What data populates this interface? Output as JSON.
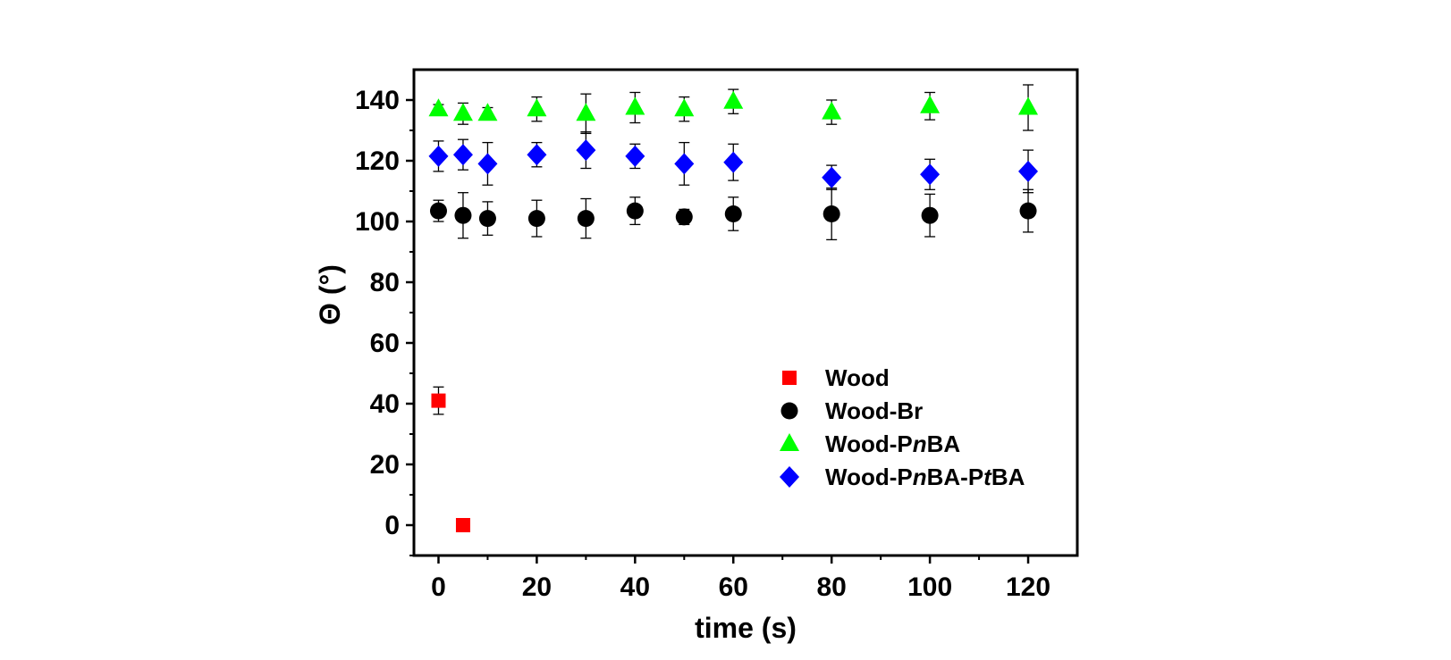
{
  "chart_data": {
    "type": "scatter",
    "xlabel": "time (s)",
    "ylabel": "Θ (°)",
    "xlim": [
      -5,
      130
    ],
    "ylim": [
      -10,
      150
    ],
    "xticks": [
      0,
      20,
      40,
      60,
      80,
      100,
      120
    ],
    "yticks": [
      0,
      20,
      40,
      60,
      80,
      100,
      120,
      140
    ],
    "grid": false,
    "legend_position": "lower-right",
    "series": [
      {
        "name": "Wood",
        "marker": "square",
        "color": "#ff0000",
        "points": [
          {
            "x": 0,
            "y": 41,
            "err": 4.5
          },
          {
            "x": 5,
            "y": 0,
            "err": 0
          }
        ]
      },
      {
        "name": "Wood-Br",
        "marker": "circle",
        "color": "#000000",
        "points": [
          {
            "x": 0,
            "y": 103.5,
            "err": 3.5
          },
          {
            "x": 5,
            "y": 102,
            "err": 7.5
          },
          {
            "x": 10,
            "y": 101,
            "err": 5.5
          },
          {
            "x": 20,
            "y": 101,
            "err": 6
          },
          {
            "x": 30,
            "y": 101,
            "err": 6.5
          },
          {
            "x": 40,
            "y": 103.5,
            "err": 4.5
          },
          {
            "x": 50,
            "y": 101.5,
            "err": 2.5
          },
          {
            "x": 60,
            "y": 102.5,
            "err": 5.5
          },
          {
            "x": 80,
            "y": 102.5,
            "err": 8.5
          },
          {
            "x": 100,
            "y": 102,
            "err": 7
          },
          {
            "x": 120,
            "y": 103.5,
            "err": 7
          }
        ]
      },
      {
        "name": "Wood-PnBA",
        "marker": "triangle",
        "color": "#00ff00",
        "points": [
          {
            "x": 0,
            "y": 137,
            "err": 1.5
          },
          {
            "x": 5,
            "y": 135.5,
            "err": 3.5
          },
          {
            "x": 10,
            "y": 135.5,
            "err": 2
          },
          {
            "x": 20,
            "y": 137,
            "err": 4
          },
          {
            "x": 30,
            "y": 135.5,
            "err": 6.5
          },
          {
            "x": 40,
            "y": 137.5,
            "err": 5
          },
          {
            "x": 50,
            "y": 137,
            "err": 4
          },
          {
            "x": 60,
            "y": 139.5,
            "err": 4
          },
          {
            "x": 80,
            "y": 136,
            "err": 4
          },
          {
            "x": 100,
            "y": 138,
            "err": 4.5
          },
          {
            "x": 120,
            "y": 137.5,
            "err": 7.5
          }
        ]
      },
      {
        "name": "Wood-PnBA-PtBA",
        "marker": "diamond",
        "color": "#0000ff",
        "points": [
          {
            "x": 0,
            "y": 121.5,
            "err": 5
          },
          {
            "x": 5,
            "y": 122,
            "err": 5
          },
          {
            "x": 10,
            "y": 119,
            "err": 7
          },
          {
            "x": 20,
            "y": 122,
            "err": 4
          },
          {
            "x": 30,
            "y": 123.5,
            "err": 6
          },
          {
            "x": 40,
            "y": 121.5,
            "err": 4
          },
          {
            "x": 50,
            "y": 119,
            "err": 7
          },
          {
            "x": 60,
            "y": 119.5,
            "err": 6
          },
          {
            "x": 80,
            "y": 114.5,
            "err": 4
          },
          {
            "x": 100,
            "y": 115.5,
            "err": 5
          },
          {
            "x": 120,
            "y": 116.5,
            "err": 7
          }
        ]
      }
    ],
    "legend": [
      {
        "marker": "square",
        "color": "#ff0000",
        "parts": [
          {
            "t": "Wood",
            "i": false
          }
        ]
      },
      {
        "marker": "circle",
        "color": "#000000",
        "parts": [
          {
            "t": "Wood-Br",
            "i": false
          }
        ]
      },
      {
        "marker": "triangle",
        "color": "#00ff00",
        "parts": [
          {
            "t": "Wood-P",
            "i": false
          },
          {
            "t": "n",
            "i": true
          },
          {
            "t": "BA",
            "i": false
          }
        ]
      },
      {
        "marker": "diamond",
        "color": "#0000ff",
        "parts": [
          {
            "t": "Wood-P",
            "i": false
          },
          {
            "t": "n",
            "i": true
          },
          {
            "t": "BA-P",
            "i": false
          },
          {
            "t": "t",
            "i": true
          },
          {
            "t": "BA",
            "i": false
          }
        ]
      }
    ]
  }
}
